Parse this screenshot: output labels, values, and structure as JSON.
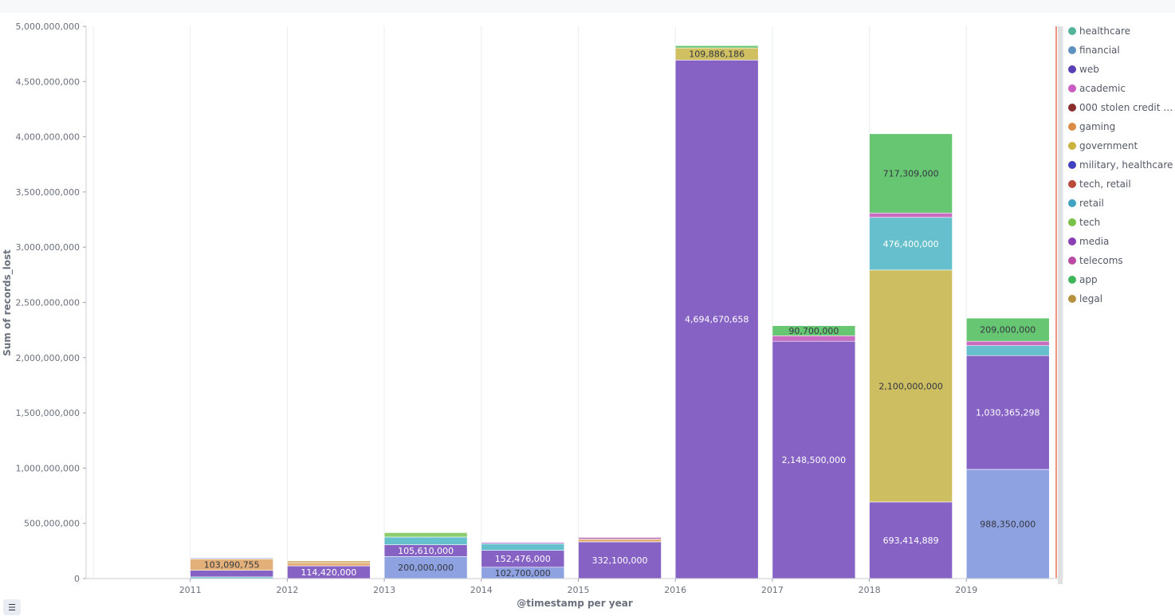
{
  "chart_data": {
    "type": "bar",
    "stacked": true,
    "xlabel": "@timestamp per year",
    "ylabel": "Sum of records_lost",
    "ylim": [
      0,
      5000000000
    ],
    "y_ticks": [
      "0",
      "500,000,000",
      "1,000,000,000",
      "1,500,000,000",
      "2,000,000,000",
      "2,500,000,000",
      "3,000,000,000",
      "3,500,000,000",
      "4,000,000,000",
      "4,500,000,000",
      "5,000,000,000"
    ],
    "x_ticks": [
      "2011",
      "2012",
      "2013",
      "2014",
      "2015",
      "2016",
      "2017",
      "2018",
      "2019"
    ],
    "grid": true,
    "legend_position": "right",
    "series_colors": {
      "healthcare": "#54b399",
      "financial": "#6092c0",
      "web": "#5a3fb5",
      "academic": "#ca5cc4",
      "000 stolen credit an...": "#8b2d2d",
      "gaming": "#da8b45",
      "government": "#c9b240",
      "military, healthcare": "#4040c0",
      "tech, retail": "#b94b3a",
      "retail": "#40a3c0",
      "tech": "#79c04a",
      "media": "#8a3fb5",
      "telecoms": "#b94ba5",
      "app": "#3fb55a",
      "legal": "#b5923f"
    },
    "legend": [
      "healthcare",
      "financial",
      "web",
      "academic",
      "000 stolen credit an...",
      "gaming",
      "government",
      "military, healthcare",
      "tech, retail",
      "retail",
      "tech",
      "media",
      "telecoms",
      "app",
      "legal"
    ],
    "bars": [
      {
        "x": "2010",
        "segments": [
          {
            "series": "web",
            "value": 2000000,
            "color": "#8662c4"
          },
          {
            "series": "healthcare",
            "value": 3000000,
            "color": "#67c672"
          }
        ]
      },
      {
        "x": "2011",
        "segments": [
          {
            "series": "retail",
            "value": 15000000,
            "color": "#66bfcc"
          },
          {
            "series": "web",
            "value": 60000000,
            "color": "#8662c4"
          },
          {
            "series": "gaming",
            "value": 103090755,
            "color": "#e2b078",
            "label": "103,090,755"
          },
          {
            "series": "financial",
            "value": 8000000,
            "color": "#8ea1e0"
          }
        ]
      },
      {
        "x": "2012",
        "segments": [
          {
            "series": "web",
            "value": 114420000,
            "color": "#8662c4",
            "label": "114,420,000"
          },
          {
            "series": "gaming",
            "value": 30000000,
            "color": "#e2b078"
          },
          {
            "series": "legal",
            "value": 15000000,
            "color": "#c6a35a"
          }
        ]
      },
      {
        "x": "2013",
        "segments": [
          {
            "series": "financial",
            "value": 200000000,
            "color": "#8ea1e0",
            "label": "200,000,000"
          },
          {
            "series": "web",
            "value": 105610000,
            "color": "#8662c4",
            "label": "105,610,000"
          },
          {
            "series": "retail",
            "value": 70000000,
            "color": "#66bfcc"
          },
          {
            "series": "tech",
            "value": 40000000,
            "color": "#8ccc6c"
          }
        ]
      },
      {
        "x": "2014",
        "segments": [
          {
            "series": "financial",
            "value": 102700000,
            "color": "#8ea1e0",
            "label": "102,700,000"
          },
          {
            "series": "web",
            "value": 152476000,
            "color": "#8662c4",
            "label": "152,476,000"
          },
          {
            "series": "retail",
            "value": 60000000,
            "color": "#66bfcc"
          },
          {
            "series": "media",
            "value": 10000000,
            "color": "#9b59c4"
          }
        ]
      },
      {
        "x": "2015",
        "segments": [
          {
            "series": "web",
            "value": 332100000,
            "color": "#8662c4",
            "label": "332,100,000"
          },
          {
            "series": "gaming",
            "value": 25000000,
            "color": "#e2b078"
          },
          {
            "series": "telecoms",
            "value": 15000000,
            "color": "#b96bb8"
          }
        ]
      },
      {
        "x": "2016",
        "segments": [
          {
            "series": "web",
            "value": 4694670658,
            "color": "#8662c4",
            "label": "4,694,670,658"
          },
          {
            "series": "government",
            "value": 109886186,
            "color": "#d0c062",
            "label": "109,886,186"
          },
          {
            "series": "app",
            "value": 20000000,
            "color": "#67c672"
          }
        ]
      },
      {
        "x": "2017",
        "segments": [
          {
            "series": "web",
            "value": 2148500000,
            "color": "#8662c4",
            "label": "2,148,500,000"
          },
          {
            "series": "academic",
            "value": 50000000,
            "color": "#c76ec0"
          },
          {
            "series": "healthcare",
            "value": 90700000,
            "color": "#67c672",
            "label": "90,700,000"
          }
        ]
      },
      {
        "x": "2018",
        "segments": [
          {
            "series": "web",
            "value": 693414889,
            "color": "#8662c4",
            "label": "693,414,889"
          },
          {
            "series": "government",
            "value": 2100000000,
            "color": "#cdbe62",
            "label": "2,100,000,000"
          },
          {
            "series": "retail",
            "value": 476400000,
            "color": "#66bfcc",
            "label": "476,400,000"
          },
          {
            "series": "academic",
            "value": 40000000,
            "color": "#c76ec0"
          },
          {
            "series": "healthcare",
            "value": 717309000,
            "color": "#67c672",
            "label": "717,309,000"
          }
        ]
      },
      {
        "x": "2019",
        "segments": [
          {
            "series": "financial",
            "value": 988350000,
            "color": "#8ea1e0",
            "label": "988,350,000"
          },
          {
            "series": "web",
            "value": 1030365298,
            "color": "#8662c4",
            "label": "1,030,365,298"
          },
          {
            "series": "retail",
            "value": 90000000,
            "color": "#66bfcc"
          },
          {
            "series": "academic",
            "value": 40000000,
            "color": "#c76ec0"
          },
          {
            "series": "healthcare",
            "value": 209000000,
            "color": "#67c672",
            "label": "209,000,000"
          }
        ]
      }
    ]
  },
  "legend_toggle_icon": "list-icon"
}
